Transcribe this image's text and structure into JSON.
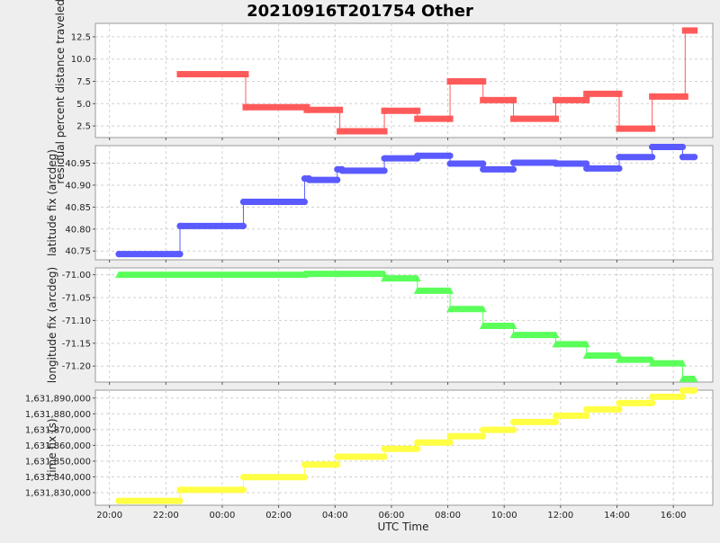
{
  "chart_data": {
    "title": "20210916T201754 Other",
    "xlabel": "UTC Time",
    "x_ticks": [
      "20:00",
      "22:00",
      "00:00",
      "02:00",
      "04:00",
      "06:00",
      "08:00",
      "10:00",
      "12:00",
      "14:00",
      "16:00"
    ],
    "panels": [
      {
        "type": "line",
        "ylabel": "residual percent distance traveled (%)",
        "color": "#ff5a5a",
        "marker": "square",
        "ylim": [
          1.2,
          14.0
        ],
        "y_ticks": [
          2.5,
          5.0,
          7.5,
          10.0,
          12.5
        ],
        "y_tick_labels": [
          "2.5",
          "5.0",
          "7.5",
          "10.0",
          "12.5"
        ],
        "segments": [
          {
            "x_start": 22.5,
            "x_end": 24.83,
            "y": 8.3
          },
          {
            "x_start": 24.83,
            "x_end": 27.0,
            "y": 4.6
          },
          {
            "x_start": 27.0,
            "x_end": 28.17,
            "y": 4.3
          },
          {
            "x_start": 28.17,
            "x_end": 29.75,
            "y": 1.9
          },
          {
            "x_start": 29.75,
            "x_end": 30.92,
            "y": 4.2
          },
          {
            "x_start": 30.92,
            "x_end": 32.08,
            "y": 3.3
          },
          {
            "x_start": 32.08,
            "x_end": 33.25,
            "y": 7.5
          },
          {
            "x_start": 33.25,
            "x_end": 34.33,
            "y": 5.4
          },
          {
            "x_start": 34.33,
            "x_end": 35.83,
            "y": 3.3
          },
          {
            "x_start": 35.83,
            "x_end": 36.92,
            "y": 5.4
          },
          {
            "x_start": 36.92,
            "x_end": 38.08,
            "y": 6.1
          },
          {
            "x_start": 38.08,
            "x_end": 39.25,
            "y": 2.2
          },
          {
            "x_start": 39.25,
            "x_end": 40.42,
            "y": 5.8
          },
          {
            "x_start": 40.42,
            "x_end": 40.75,
            "y": 13.2
          }
        ]
      },
      {
        "type": "line",
        "ylabel": "latitude fix (arcdeg)",
        "color": "#5a5aff",
        "marker": "circle",
        "ylim": [
          40.73,
          40.99
        ],
        "y_ticks": [
          40.75,
          40.8,
          40.85,
          40.9,
          40.95
        ],
        "y_tick_labels": [
          "40.75",
          "40.80",
          "40.85",
          "40.90",
          "40.95"
        ],
        "segments": [
          {
            "x_start": 20.33,
            "x_end": 22.5,
            "y": 40.743
          },
          {
            "x_start": 22.5,
            "x_end": 24.75,
            "y": 40.807
          },
          {
            "x_start": 24.75,
            "x_end": 26.92,
            "y": 40.862
          },
          {
            "x_start": 26.92,
            "x_end": 27.08,
            "y": 40.915
          },
          {
            "x_start": 27.08,
            "x_end": 28.08,
            "y": 40.912
          },
          {
            "x_start": 28.08,
            "x_end": 28.25,
            "y": 40.936
          },
          {
            "x_start": 28.25,
            "x_end": 29.75,
            "y": 40.933
          },
          {
            "x_start": 29.75,
            "x_end": 30.92,
            "y": 40.961
          },
          {
            "x_start": 30.92,
            "x_end": 32.08,
            "y": 40.967
          },
          {
            "x_start": 32.08,
            "x_end": 33.25,
            "y": 40.949
          },
          {
            "x_start": 33.25,
            "x_end": 34.33,
            "y": 40.936
          },
          {
            "x_start": 34.33,
            "x_end": 35.83,
            "y": 40.951
          },
          {
            "x_start": 35.83,
            "x_end": 36.92,
            "y": 40.949
          },
          {
            "x_start": 36.92,
            "x_end": 38.08,
            "y": 40.938
          },
          {
            "x_start": 38.08,
            "x_end": 39.25,
            "y": 40.964
          },
          {
            "x_start": 39.25,
            "x_end": 40.33,
            "y": 40.987
          },
          {
            "x_start": 40.33,
            "x_end": 40.75,
            "y": 40.964
          }
        ]
      },
      {
        "type": "line",
        "ylabel": "longitude fix (arcdeg)",
        "color": "#5aff5a",
        "marker": "triangle",
        "ylim": [
          -71.235,
          -70.985
        ],
        "y_ticks": [
          -71.0,
          -71.05,
          -71.1,
          -71.15,
          -71.2
        ],
        "y_tick_labels": [
          "-71.00",
          "-71.05",
          "-71.10",
          "-71.15",
          "-71.20"
        ],
        "segments": [
          {
            "x_start": 20.33,
            "x_end": 26.92,
            "y": -71.0
          },
          {
            "x_start": 26.92,
            "x_end": 28.08,
            "y": -70.998
          },
          {
            "x_start": 28.08,
            "x_end": 29.75,
            "y": -70.998
          },
          {
            "x_start": 29.75,
            "x_end": 30.92,
            "y": -71.008
          },
          {
            "x_start": 30.92,
            "x_end": 32.08,
            "y": -71.035
          },
          {
            "x_start": 32.08,
            "x_end": 33.25,
            "y": -71.075
          },
          {
            "x_start": 33.25,
            "x_end": 34.33,
            "y": -71.112
          },
          {
            "x_start": 34.33,
            "x_end": 35.83,
            "y": -71.132
          },
          {
            "x_start": 35.83,
            "x_end": 36.92,
            "y": -71.152
          },
          {
            "x_start": 36.92,
            "x_end": 38.08,
            "y": -71.177
          },
          {
            "x_start": 38.08,
            "x_end": 39.25,
            "y": -71.186
          },
          {
            "x_start": 39.25,
            "x_end": 40.33,
            "y": -71.194
          },
          {
            "x_start": 40.33,
            "x_end": 40.75,
            "y": -71.228
          }
        ]
      },
      {
        "type": "line",
        "ylabel": "time fix (s)",
        "color": "#ffff44",
        "marker": "circle",
        "ylim": [
          1631822000,
          1631895000
        ],
        "y_ticks": [
          1631830000,
          1631840000,
          1631850000,
          1631860000,
          1631870000,
          1631880000,
          1631890000
        ],
        "y_tick_labels": [
          "1,631,830,000",
          "1,631,840,000",
          "1,631,850,000",
          "1,631,860,000",
          "1,631,870,000",
          "1,631,880,000",
          "1,631,890,000"
        ],
        "segments": [
          {
            "x_start": 20.33,
            "x_end": 22.5,
            "y": 1631824800
          },
          {
            "x_start": 22.5,
            "x_end": 24.75,
            "y": 1631831800
          },
          {
            "x_start": 24.75,
            "x_end": 26.92,
            "y": 1631839800
          },
          {
            "x_start": 26.92,
            "x_end": 28.08,
            "y": 1631847800
          },
          {
            "x_start": 28.08,
            "x_end": 29.75,
            "y": 1631852800
          },
          {
            "x_start": 29.75,
            "x_end": 30.92,
            "y": 1631857800
          },
          {
            "x_start": 30.92,
            "x_end": 32.08,
            "y": 1631861800
          },
          {
            "x_start": 32.08,
            "x_end": 33.25,
            "y": 1631865800
          },
          {
            "x_start": 33.25,
            "x_end": 34.33,
            "y": 1631869800
          },
          {
            "x_start": 34.33,
            "x_end": 35.83,
            "y": 1631874800
          },
          {
            "x_start": 35.83,
            "x_end": 36.92,
            "y": 1631878800
          },
          {
            "x_start": 36.92,
            "x_end": 38.08,
            "y": 1631882800
          },
          {
            "x_start": 38.08,
            "x_end": 39.25,
            "y": 1631886800
          },
          {
            "x_start": 39.25,
            "x_end": 40.33,
            "y": 1631890800
          },
          {
            "x_start": 40.33,
            "x_end": 40.75,
            "y": 1631894800
          }
        ]
      }
    ]
  }
}
